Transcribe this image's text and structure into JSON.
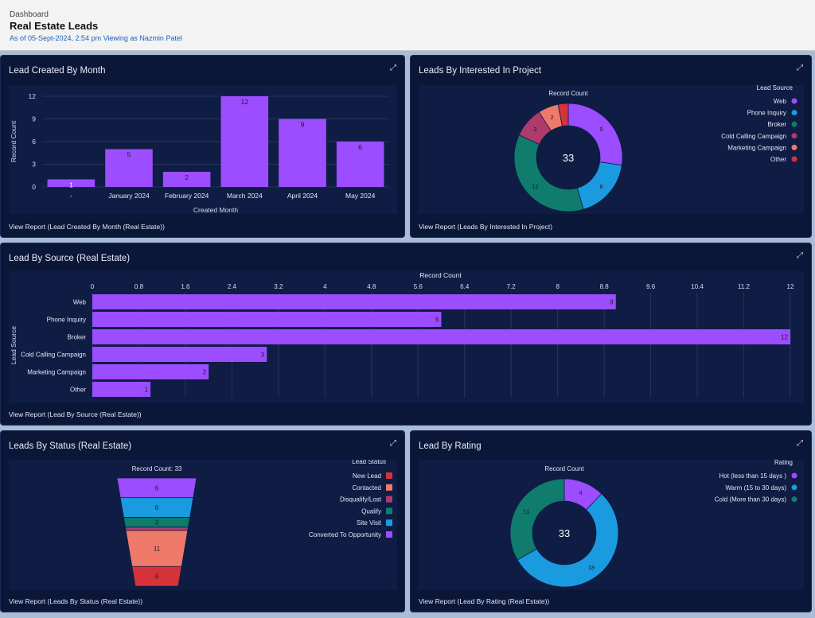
{
  "header": {
    "breadcrumb": "Dashboard",
    "title": "Real Estate Leads",
    "meta": "As of 05-Sept-2024, 2:54 pm Viewing as Nazmin Patel"
  },
  "colors": {
    "purple": "#9b4dff",
    "blue": "#1a9be0",
    "teal": "#0f7c6e",
    "magenta": "#b03a6e",
    "salmon": "#f07a6a",
    "red": "#d6323a"
  },
  "cards": {
    "month": {
      "title": "Lead Created By Month",
      "link": "View Report (Lead Created By Month (Real Estate))"
    },
    "project": {
      "title": "Leads By Interested In Project",
      "link": "View Report (Leads By Interested In Project)"
    },
    "source": {
      "title": "Lead By Source (Real Estate)",
      "link": "View Report (Lead By Source (Real Estate))"
    },
    "status": {
      "title": "Leads By Status (Real Estate)",
      "link": "View Report (Leads By Status (Real Estate))"
    },
    "rating": {
      "title": "Lead By Rating",
      "link": "View Report (Lead By Rating (Real Estate))"
    }
  },
  "chart_data": [
    {
      "id": "month",
      "type": "bar",
      "title": "Lead Created By Month",
      "xlabel": "Created Month",
      "ylabel": "Record Count",
      "categories": [
        "-",
        "January 2024",
        "February 2024",
        "March 2024",
        "April 2024",
        "May 2024"
      ],
      "values": [
        1,
        5,
        2,
        12,
        9,
        6
      ],
      "ylim": [
        0,
        12
      ],
      "yticks": [
        0,
        3,
        6,
        9,
        12
      ]
    },
    {
      "id": "project",
      "type": "pie",
      "title": "Record Count",
      "total": "33",
      "legend_title": "Lead Source",
      "labels": [
        "Web",
        "Phone Inquiry",
        "Broker",
        "Cold Calling Campaign",
        "Marketing Campaign",
        "Other"
      ],
      "values": [
        9,
        6,
        12,
        3,
        2,
        1
      ]
    },
    {
      "id": "source",
      "type": "bar",
      "orientation": "horizontal",
      "xlabel": "Record Count",
      "ylabel": "Lead Source",
      "categories": [
        "Web",
        "Phone Inquiry",
        "Broker",
        "Cold Calling Campaign",
        "Marketing Campaign",
        "Other"
      ],
      "values": [
        9,
        6,
        12,
        3,
        2,
        1
      ],
      "xlim": [
        0,
        12
      ],
      "xticks": [
        "0",
        "0.8",
        "1.6",
        "2.4",
        "3.2",
        "4",
        "4.8",
        "5.6",
        "6.4",
        "7.2",
        "8",
        "8.8",
        "9.6",
        "10.4",
        "11.2",
        "12"
      ]
    },
    {
      "id": "status",
      "type": "funnel",
      "title": "Record Count: 33",
      "legend_title": "Lead Status",
      "labels": [
        "Converted To Opportunity",
        "Site Visit",
        "Qualify",
        "Disqualify/Lost",
        "Contacted",
        "New Lead"
      ],
      "legend_order": [
        "New Lead",
        "Contacted",
        "Disqualify/Lost",
        "Qualify",
        "Site Visit",
        "Converted To Opportunity"
      ],
      "values": [
        6,
        6,
        3,
        1,
        11,
        6
      ]
    },
    {
      "id": "rating",
      "type": "pie",
      "title": "Record Count",
      "total": "33",
      "legend_title": "Rating",
      "labels": [
        "Hot (less than 15 days )",
        "Warm (15 to 30 days)",
        "Cold (More than 30 days)"
      ],
      "values": [
        4,
        18,
        11
      ]
    }
  ]
}
